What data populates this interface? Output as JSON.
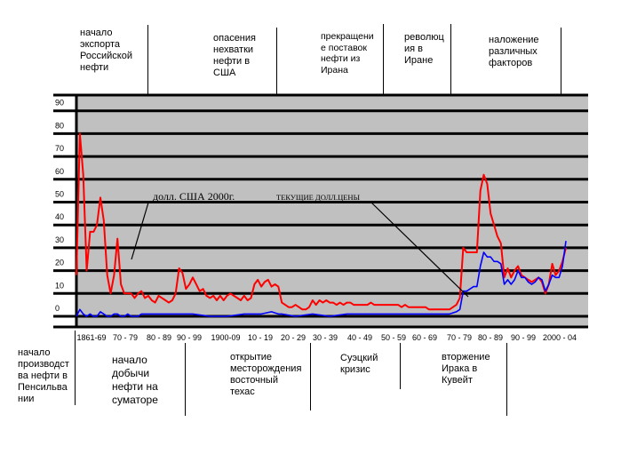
{
  "chart_data": {
    "type": "line",
    "title": "",
    "xlabel": "",
    "ylabel": "",
    "ylim": [
      0,
      90
    ],
    "y_ticks": [
      "0",
      "10",
      "20",
      "30",
      "40",
      "50",
      "60",
      "70",
      "80",
      "90"
    ],
    "x_tick_labels": [
      "1861-69",
      "70 - 79",
      "80 - 89",
      "90 - 99",
      "1900-09",
      "10 - 19",
      "20 - 29",
      "30 - 39",
      "40 - 49",
      "50 - 59",
      "60 - 69",
      "70 - 79",
      "80 - 89",
      "90 - 99",
      "2000 - 04"
    ],
    "grid": "horizontal",
    "background_color": "#c0c0c0",
    "series": [
      {
        "name": "долл. США 2000г.",
        "color": "#ff0000",
        "points": [
          [
            1861,
            18
          ],
          [
            1862,
            80
          ],
          [
            1863,
            62
          ],
          [
            1864,
            20
          ],
          [
            1865,
            37
          ],
          [
            1866,
            37
          ],
          [
            1867,
            40
          ],
          [
            1868,
            52
          ],
          [
            1869,
            42
          ],
          [
            1870,
            18
          ],
          [
            1871,
            10
          ],
          [
            1872,
            18
          ],
          [
            1873,
            34
          ],
          [
            1874,
            14
          ],
          [
            1875,
            10
          ],
          [
            1876,
            10
          ],
          [
            1877,
            10
          ],
          [
            1878,
            8
          ],
          [
            1879,
            10
          ],
          [
            1880,
            11
          ],
          [
            1881,
            8
          ],
          [
            1882,
            9
          ],
          [
            1883,
            7
          ],
          [
            1884,
            6
          ],
          [
            1885,
            9
          ],
          [
            1886,
            8
          ],
          [
            1887,
            7
          ],
          [
            1888,
            6
          ],
          [
            1889,
            7
          ],
          [
            1890,
            10
          ],
          [
            1891,
            21
          ],
          [
            1892,
            19
          ],
          [
            1893,
            12
          ],
          [
            1894,
            14
          ],
          [
            1895,
            17
          ],
          [
            1896,
            14
          ],
          [
            1897,
            11
          ],
          [
            1898,
            12
          ],
          [
            1899,
            9
          ],
          [
            1900,
            8
          ],
          [
            1901,
            9
          ],
          [
            1902,
            7
          ],
          [
            1903,
            9
          ],
          [
            1904,
            7
          ],
          [
            1905,
            9
          ],
          [
            1906,
            10
          ],
          [
            1907,
            9
          ],
          [
            1908,
            8
          ],
          [
            1909,
            7
          ],
          [
            1910,
            9
          ],
          [
            1911,
            7
          ],
          [
            1912,
            8
          ],
          [
            1913,
            14
          ],
          [
            1914,
            16
          ],
          [
            1915,
            13
          ],
          [
            1916,
            15
          ],
          [
            1917,
            16
          ],
          [
            1918,
            13
          ],
          [
            1919,
            14
          ],
          [
            1920,
            13
          ],
          [
            1921,
            6
          ],
          [
            1922,
            5
          ],
          [
            1923,
            4
          ],
          [
            1924,
            4
          ],
          [
            1925,
            5
          ],
          [
            1926,
            4
          ],
          [
            1927,
            3
          ],
          [
            1928,
            3
          ],
          [
            1929,
            4
          ],
          [
            1930,
            7
          ],
          [
            1931,
            5
          ],
          [
            1932,
            7
          ],
          [
            1933,
            6
          ],
          [
            1934,
            7
          ],
          [
            1935,
            6
          ],
          [
            1936,
            6
          ],
          [
            1937,
            5
          ],
          [
            1938,
            6
          ],
          [
            1939,
            5
          ],
          [
            1940,
            6
          ],
          [
            1941,
            6
          ],
          [
            1942,
            5
          ],
          [
            1943,
            5
          ],
          [
            1944,
            5
          ],
          [
            1945,
            5
          ],
          [
            1946,
            5
          ],
          [
            1947,
            6
          ],
          [
            1948,
            5
          ],
          [
            1949,
            5
          ],
          [
            1950,
            5
          ],
          [
            1951,
            5
          ],
          [
            1952,
            5
          ],
          [
            1953,
            5
          ],
          [
            1954,
            5
          ],
          [
            1955,
            5
          ],
          [
            1956,
            4
          ],
          [
            1957,
            5
          ],
          [
            1958,
            4
          ],
          [
            1959,
            4
          ],
          [
            1960,
            4
          ],
          [
            1961,
            4
          ],
          [
            1962,
            4
          ],
          [
            1963,
            4
          ],
          [
            1964,
            3
          ],
          [
            1965,
            3
          ],
          [
            1966,
            3
          ],
          [
            1967,
            3
          ],
          [
            1968,
            3
          ],
          [
            1969,
            3
          ],
          [
            1970,
            3
          ],
          [
            1971,
            4
          ],
          [
            1972,
            5
          ],
          [
            1973,
            8
          ],
          [
            1974,
            30
          ],
          [
            1975,
            28
          ],
          [
            1976,
            28
          ],
          [
            1977,
            28
          ],
          [
            1978,
            28
          ],
          [
            1979,
            55
          ],
          [
            1980,
            62
          ],
          [
            1981,
            58
          ],
          [
            1982,
            45
          ],
          [
            1983,
            40
          ],
          [
            1984,
            35
          ],
          [
            1985,
            32
          ],
          [
            1986,
            17
          ],
          [
            1987,
            21
          ],
          [
            1988,
            17
          ],
          [
            1989,
            20
          ],
          [
            1990,
            22
          ],
          [
            1991,
            18
          ],
          [
            1992,
            17
          ],
          [
            1993,
            16
          ],
          [
            1994,
            15
          ],
          [
            1995,
            16
          ],
          [
            1996,
            17
          ],
          [
            1997,
            15
          ],
          [
            1998,
            10
          ],
          [
            1999,
            14
          ],
          [
            2000,
            23
          ],
          [
            2001,
            18
          ],
          [
            2002,
            20
          ],
          [
            2003,
            24
          ],
          [
            2004,
            30
          ]
        ]
      },
      {
        "name": "ТЕКУЩИЕ ДОЛЛ.ЦЕНЫ",
        "color": "#0000ff",
        "points": [
          [
            1861,
            0
          ],
          [
            1862,
            3
          ],
          [
            1863,
            1
          ],
          [
            1864,
            0
          ],
          [
            1865,
            1
          ],
          [
            1866,
            0
          ],
          [
            1867,
            0
          ],
          [
            1868,
            2
          ],
          [
            1869,
            1
          ],
          [
            1870,
            0
          ],
          [
            1871,
            0
          ],
          [
            1872,
            1
          ],
          [
            1873,
            1
          ],
          [
            1874,
            0
          ],
          [
            1875,
            0
          ],
          [
            1876,
            1
          ],
          [
            1877,
            0
          ],
          [
            1878,
            0
          ],
          [
            1879,
            0
          ],
          [
            1880,
            1
          ],
          [
            1885,
            1
          ],
          [
            1890,
            1
          ],
          [
            1895,
            1
          ],
          [
            1900,
            0
          ],
          [
            1905,
            0
          ],
          [
            1910,
            1
          ],
          [
            1913,
            1
          ],
          [
            1915,
            1
          ],
          [
            1918,
            2
          ],
          [
            1920,
            1
          ],
          [
            1921,
            1
          ],
          [
            1925,
            0
          ],
          [
            1930,
            1
          ],
          [
            1935,
            0
          ],
          [
            1940,
            1
          ],
          [
            1945,
            1
          ],
          [
            1950,
            1
          ],
          [
            1955,
            1
          ],
          [
            1960,
            1
          ],
          [
            1965,
            1
          ],
          [
            1970,
            1
          ],
          [
            1972,
            2
          ],
          [
            1973,
            3
          ],
          [
            1974,
            11
          ],
          [
            1975,
            11
          ],
          [
            1976,
            12
          ],
          [
            1977,
            13
          ],
          [
            1978,
            13
          ],
          [
            1979,
            22
          ],
          [
            1980,
            28
          ],
          [
            1981,
            26
          ],
          [
            1982,
            26
          ],
          [
            1983,
            24
          ],
          [
            1984,
            24
          ],
          [
            1985,
            23
          ],
          [
            1986,
            14
          ],
          [
            1987,
            16
          ],
          [
            1988,
            14
          ],
          [
            1989,
            16
          ],
          [
            1990,
            20
          ],
          [
            1991,
            17
          ],
          [
            1992,
            17
          ],
          [
            1993,
            15
          ],
          [
            1994,
            14
          ],
          [
            1995,
            15
          ],
          [
            1996,
            17
          ],
          [
            1997,
            16
          ],
          [
            1998,
            11
          ],
          [
            1999,
            14
          ],
          [
            2000,
            18
          ],
          [
            2001,
            17
          ],
          [
            2002,
            17
          ],
          [
            2003,
            22
          ],
          [
            2004,
            33
          ]
        ]
      }
    ],
    "annotations_top": [
      "начало\nэкспорта\nРоссийской\nнефти",
      "опасения\nнехватки\nнефти в\nСША",
      "прекращени\nе поставок\nнефти из\nИрана",
      "революц\nия в\nИране",
      "наложение\nразличных\nфакторов"
    ],
    "annotations_bottom": [
      "начало\nпроизводст\nва нефти в\nПенсильва\nнии",
      "начало\nдобычи\nнефти на\nсуматоре",
      "открытие\nместорождения\n восточный\nтехас",
      "Суэцкий\nкризис",
      "вторжение\nИрака в\nКувейт"
    ]
  }
}
